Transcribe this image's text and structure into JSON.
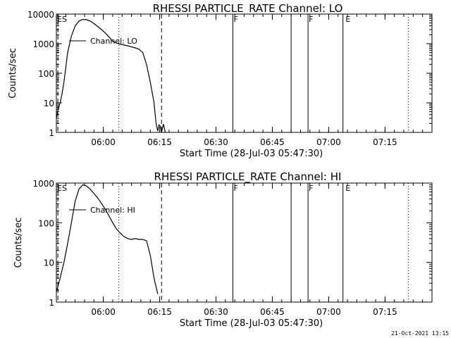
{
  "timestamp": "21-Oct-2021 13:15",
  "chart_data": [
    {
      "type": "line",
      "title": "RHESSI PARTICLE_RATE Channel: LO",
      "xlabel": "Start Time (28-Jul-03 05:47:30)",
      "ylabel": "Counts/sec",
      "yscale": "log",
      "ylim": [
        1,
        10000
      ],
      "xlim_minutes": [
        0,
        100
      ],
      "x_tick_labels": [
        "06:00",
        "06:15",
        "06:30",
        "06:45",
        "07:00",
        "07:15"
      ],
      "y_tick_labels": [
        "1",
        "10",
        "100",
        "1000",
        "10000"
      ],
      "legend": "Channel: LO",
      "series": [
        {
          "name": "Channel: LO",
          "x": [
            0,
            0.3,
            1,
            1.5,
            2,
            2.5,
            3,
            4,
            5,
            6,
            7,
            8,
            9,
            10,
            11,
            12,
            13,
            14,
            15,
            16,
            17,
            18,
            19,
            20,
            21,
            22,
            23,
            24,
            25,
            26,
            26.3,
            26.6,
            27,
            27.3,
            27.7,
            28,
            28.5,
            29
          ],
          "y": [
            3,
            5,
            10,
            20,
            50,
            150,
            500,
            1800,
            4000,
            5800,
            6600,
            6500,
            5800,
            4800,
            3800,
            3000,
            2300,
            1700,
            1200,
            1050,
            950,
            900,
            850,
            780,
            720,
            650,
            500,
            200,
            50,
            10,
            4,
            1.8,
            1.1,
            1.8,
            1.6,
            1,
            1.9,
            1
          ]
        }
      ],
      "markers": [
        {
          "label": "ES",
          "x": 0
        },
        {
          "label": "F",
          "x": 47
        },
        {
          "label": "F",
          "x": 67
        },
        {
          "label": "E",
          "x": 76.8
        }
      ],
      "solid_vlines": [
        47,
        62.5,
        67,
        76.3
      ],
      "dotted_vlines": [
        16.6,
        93.7
      ],
      "dashed_vlines": [
        0.4,
        28
      ]
    },
    {
      "type": "line",
      "title": "RHESSI PARTICLE_RATE Channel: HI",
      "xlabel": "Start Time (28-Jul-03 05:47:30)",
      "ylabel": "Counts/sec",
      "yscale": "log",
      "ylim": [
        1,
        1000
      ],
      "xlim_minutes": [
        0,
        100
      ],
      "x_tick_labels": [
        "06:00",
        "06:15",
        "06:30",
        "06:45",
        "07:00",
        "07:15"
      ],
      "y_tick_labels": [
        "1",
        "10",
        "100",
        "1000"
      ],
      "legend": "Channel: HI",
      "series": [
        {
          "name": "Channel: HI",
          "x": [
            0,
            1,
            2,
            3,
            4,
            5,
            6,
            7,
            8,
            9,
            10,
            11,
            12,
            13,
            14,
            15,
            16,
            17,
            18,
            19,
            20,
            21,
            22,
            23,
            24,
            25,
            26,
            27
          ],
          "y": [
            1.8,
            4,
            10,
            30,
            100,
            350,
            700,
            900,
            850,
            700,
            550,
            420,
            310,
            220,
            150,
            100,
            70,
            55,
            45,
            40,
            38,
            40,
            38,
            38,
            35,
            15,
            4,
            1.6
          ]
        }
      ],
      "markers": [
        {
          "label": "ES",
          "x": 0
        },
        {
          "label": "F",
          "x": 47
        },
        {
          "label": "F",
          "x": 67
        },
        {
          "label": "E",
          "x": 76.8
        }
      ],
      "solid_vlines": [
        47,
        62.5,
        67,
        76.3
      ],
      "dotted_vlines": [
        16.6,
        93.7
      ],
      "dashed_vlines": [
        0.4,
        28
      ]
    }
  ]
}
